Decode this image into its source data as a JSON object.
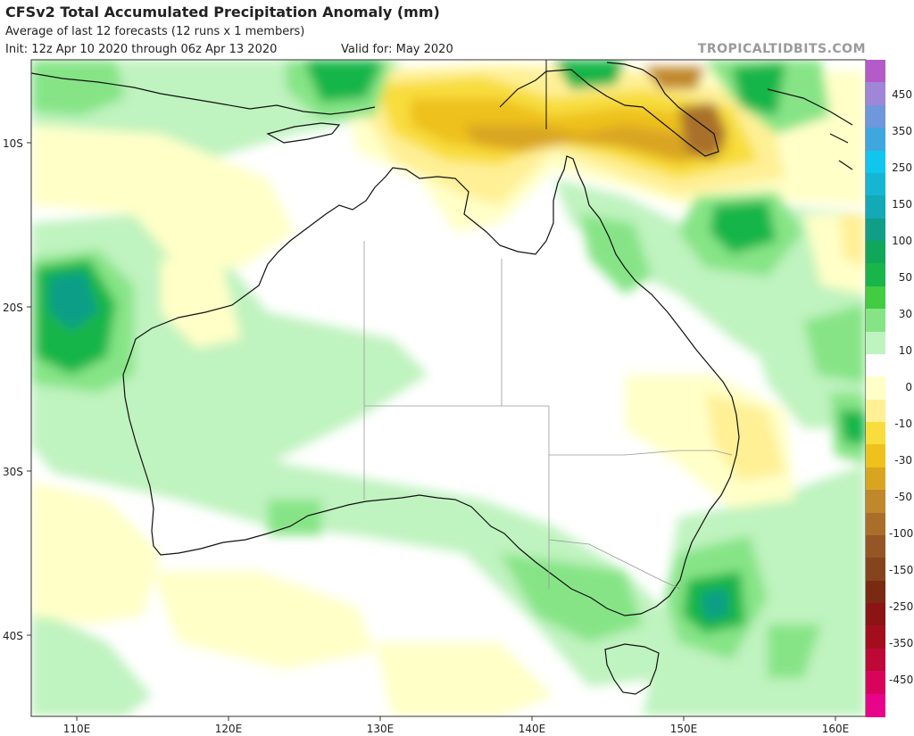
{
  "header": {
    "title": "CFSv2 Total Accumulated Precipitation Anomaly (mm)",
    "subtitle": "Average of last 12 forecasts (12 runs x 1 members)",
    "init": "Init: 12z Apr 10 2020 through 06z Apr 13 2020",
    "valid": "Valid for: May 2020",
    "brand": "TROPICALTIDBITS.COM"
  },
  "map": {
    "lon_range": [
      107,
      162
    ],
    "lat_range": [
      -45.5,
      -5.5
    ],
    "lat_ticks": [
      "10S",
      "20S",
      "30S",
      "40S"
    ],
    "lon_ticks": [
      "110E",
      "120E",
      "130E",
      "140E",
      "150E",
      "160E"
    ]
  },
  "legend": {
    "labels": [
      "450",
      "350",
      "250",
      "150",
      "100",
      "50",
      "30",
      "10",
      "0",
      "-10",
      "-30",
      "-50",
      "-100",
      "-150",
      "-250",
      "-350",
      "-450"
    ],
    "colors": [
      "#b35cc9",
      "#9f86d6",
      "#6f97db",
      "#3fa7df",
      "#11c6ee",
      "#15b6d4",
      "#13a9b6",
      "#0f9e88",
      "#0fa85a",
      "#17b54a",
      "#41cc41",
      "#86e486",
      "#bff3bf",
      "#ffffff",
      "#ffffc8",
      "#fff096",
      "#f8dd3c",
      "#eec11d",
      "#d9a520",
      "#c0872b",
      "#a96f2a",
      "#955525",
      "#85441e",
      "#7a2a12",
      "#8c1414",
      "#a30e1e",
      "#bd0838",
      "#d8045c",
      "#e8048a"
    ]
  }
}
